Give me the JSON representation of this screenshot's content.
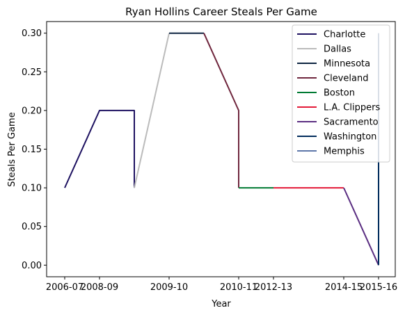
{
  "chart_data": {
    "type": "line",
    "title": "Ryan Hollins Career Steals Per Game",
    "xlabel": "Year",
    "ylabel": "Steals Per Game",
    "x_tick_labels": [
      "2006-07",
      "2008-09",
      "2009-10",
      "2010-11",
      "2012-13",
      "2014-15",
      "2015-16"
    ],
    "y_ticks": [
      "0.00",
      "0.05",
      "0.10",
      "0.15",
      "0.20",
      "0.25",
      "0.30"
    ],
    "ylim": [
      -0.015,
      0.315
    ],
    "grid": false,
    "legend_position": "top-right",
    "series": [
      {
        "name": "Charlotte",
        "color": "#1d1160",
        "points": [
          [
            0,
            0.1
          ],
          [
            1,
            0.2
          ],
          [
            2,
            0.2
          ],
          [
            2,
            0.1
          ]
        ]
      },
      {
        "name": "Dallas",
        "color": "#bbbbbb",
        "points": [
          [
            2,
            0.1
          ],
          [
            3,
            0.3
          ]
        ]
      },
      {
        "name": "Minnesota",
        "color": "#0c2340",
        "points": [
          [
            3,
            0.3
          ],
          [
            4,
            0.3
          ]
        ]
      },
      {
        "name": "Cleveland",
        "color": "#6f263d",
        "points": [
          [
            4,
            0.3
          ],
          [
            5,
            0.2
          ],
          [
            5,
            0.1
          ]
        ]
      },
      {
        "name": "Boston",
        "color": "#007a33",
        "points": [
          [
            5,
            0.1
          ],
          [
            6,
            0.1
          ]
        ]
      },
      {
        "name": "L.A. Clippers",
        "color": "#e31837",
        "points": [
          [
            6,
            0.1
          ],
          [
            8,
            0.1
          ]
        ]
      },
      {
        "name": "Sacramento",
        "color": "#5a2d81",
        "points": [
          [
            8,
            0.1
          ],
          [
            9,
            0.0
          ]
        ]
      },
      {
        "name": "Washington",
        "color": "#002b5c",
        "points": [
          [
            9,
            0.0
          ],
          [
            9,
            0.3
          ]
        ]
      },
      {
        "name": "Memphis",
        "color": "#5d76a9",
        "points": []
      }
    ]
  }
}
